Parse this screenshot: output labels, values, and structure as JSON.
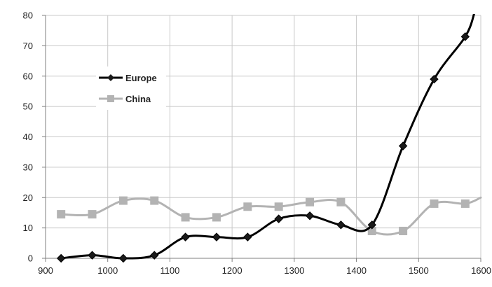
{
  "chart_data": {
    "type": "line",
    "title": "",
    "xlabel": "",
    "ylabel": "",
    "xlim": [
      900,
      1600
    ],
    "ylim": [
      0,
      80
    ],
    "x_ticks": [
      900,
      1000,
      1100,
      1200,
      1300,
      1400,
      1500,
      1600
    ],
    "y_ticks": [
      0,
      10,
      20,
      30,
      40,
      50,
      60,
      70,
      80
    ],
    "grid": true,
    "smooth": true,
    "legend": {
      "placement": "upper-left"
    },
    "series": [
      {
        "name": "Europe",
        "color": "#000000",
        "marker": "diamond",
        "points": [
          [
            925,
            0
          ],
          [
            975,
            1
          ],
          [
            1025,
            0
          ],
          [
            1075,
            1
          ],
          [
            1125,
            7
          ],
          [
            1175,
            7
          ],
          [
            1225,
            7
          ],
          [
            1275,
            13
          ],
          [
            1325,
            14
          ],
          [
            1375,
            11
          ],
          [
            1425,
            11
          ],
          [
            1475,
            37
          ],
          [
            1525,
            59
          ],
          [
            1575,
            73
          ],
          [
            1590,
            81
          ]
        ],
        "marker_count": 14
      },
      {
        "name": "China",
        "color": "#b3b3b3",
        "marker": "square",
        "points": [
          [
            925,
            14.5
          ],
          [
            975,
            14.5
          ],
          [
            1025,
            19
          ],
          [
            1075,
            19
          ],
          [
            1125,
            13.5
          ],
          [
            1175,
            13.5
          ],
          [
            1225,
            17
          ],
          [
            1275,
            17
          ],
          [
            1325,
            18.5
          ],
          [
            1375,
            18.5
          ],
          [
            1425,
            9
          ],
          [
            1475,
            9
          ],
          [
            1525,
            18
          ],
          [
            1575,
            18
          ],
          [
            1600,
            20
          ]
        ],
        "marker_count": 14
      }
    ]
  }
}
